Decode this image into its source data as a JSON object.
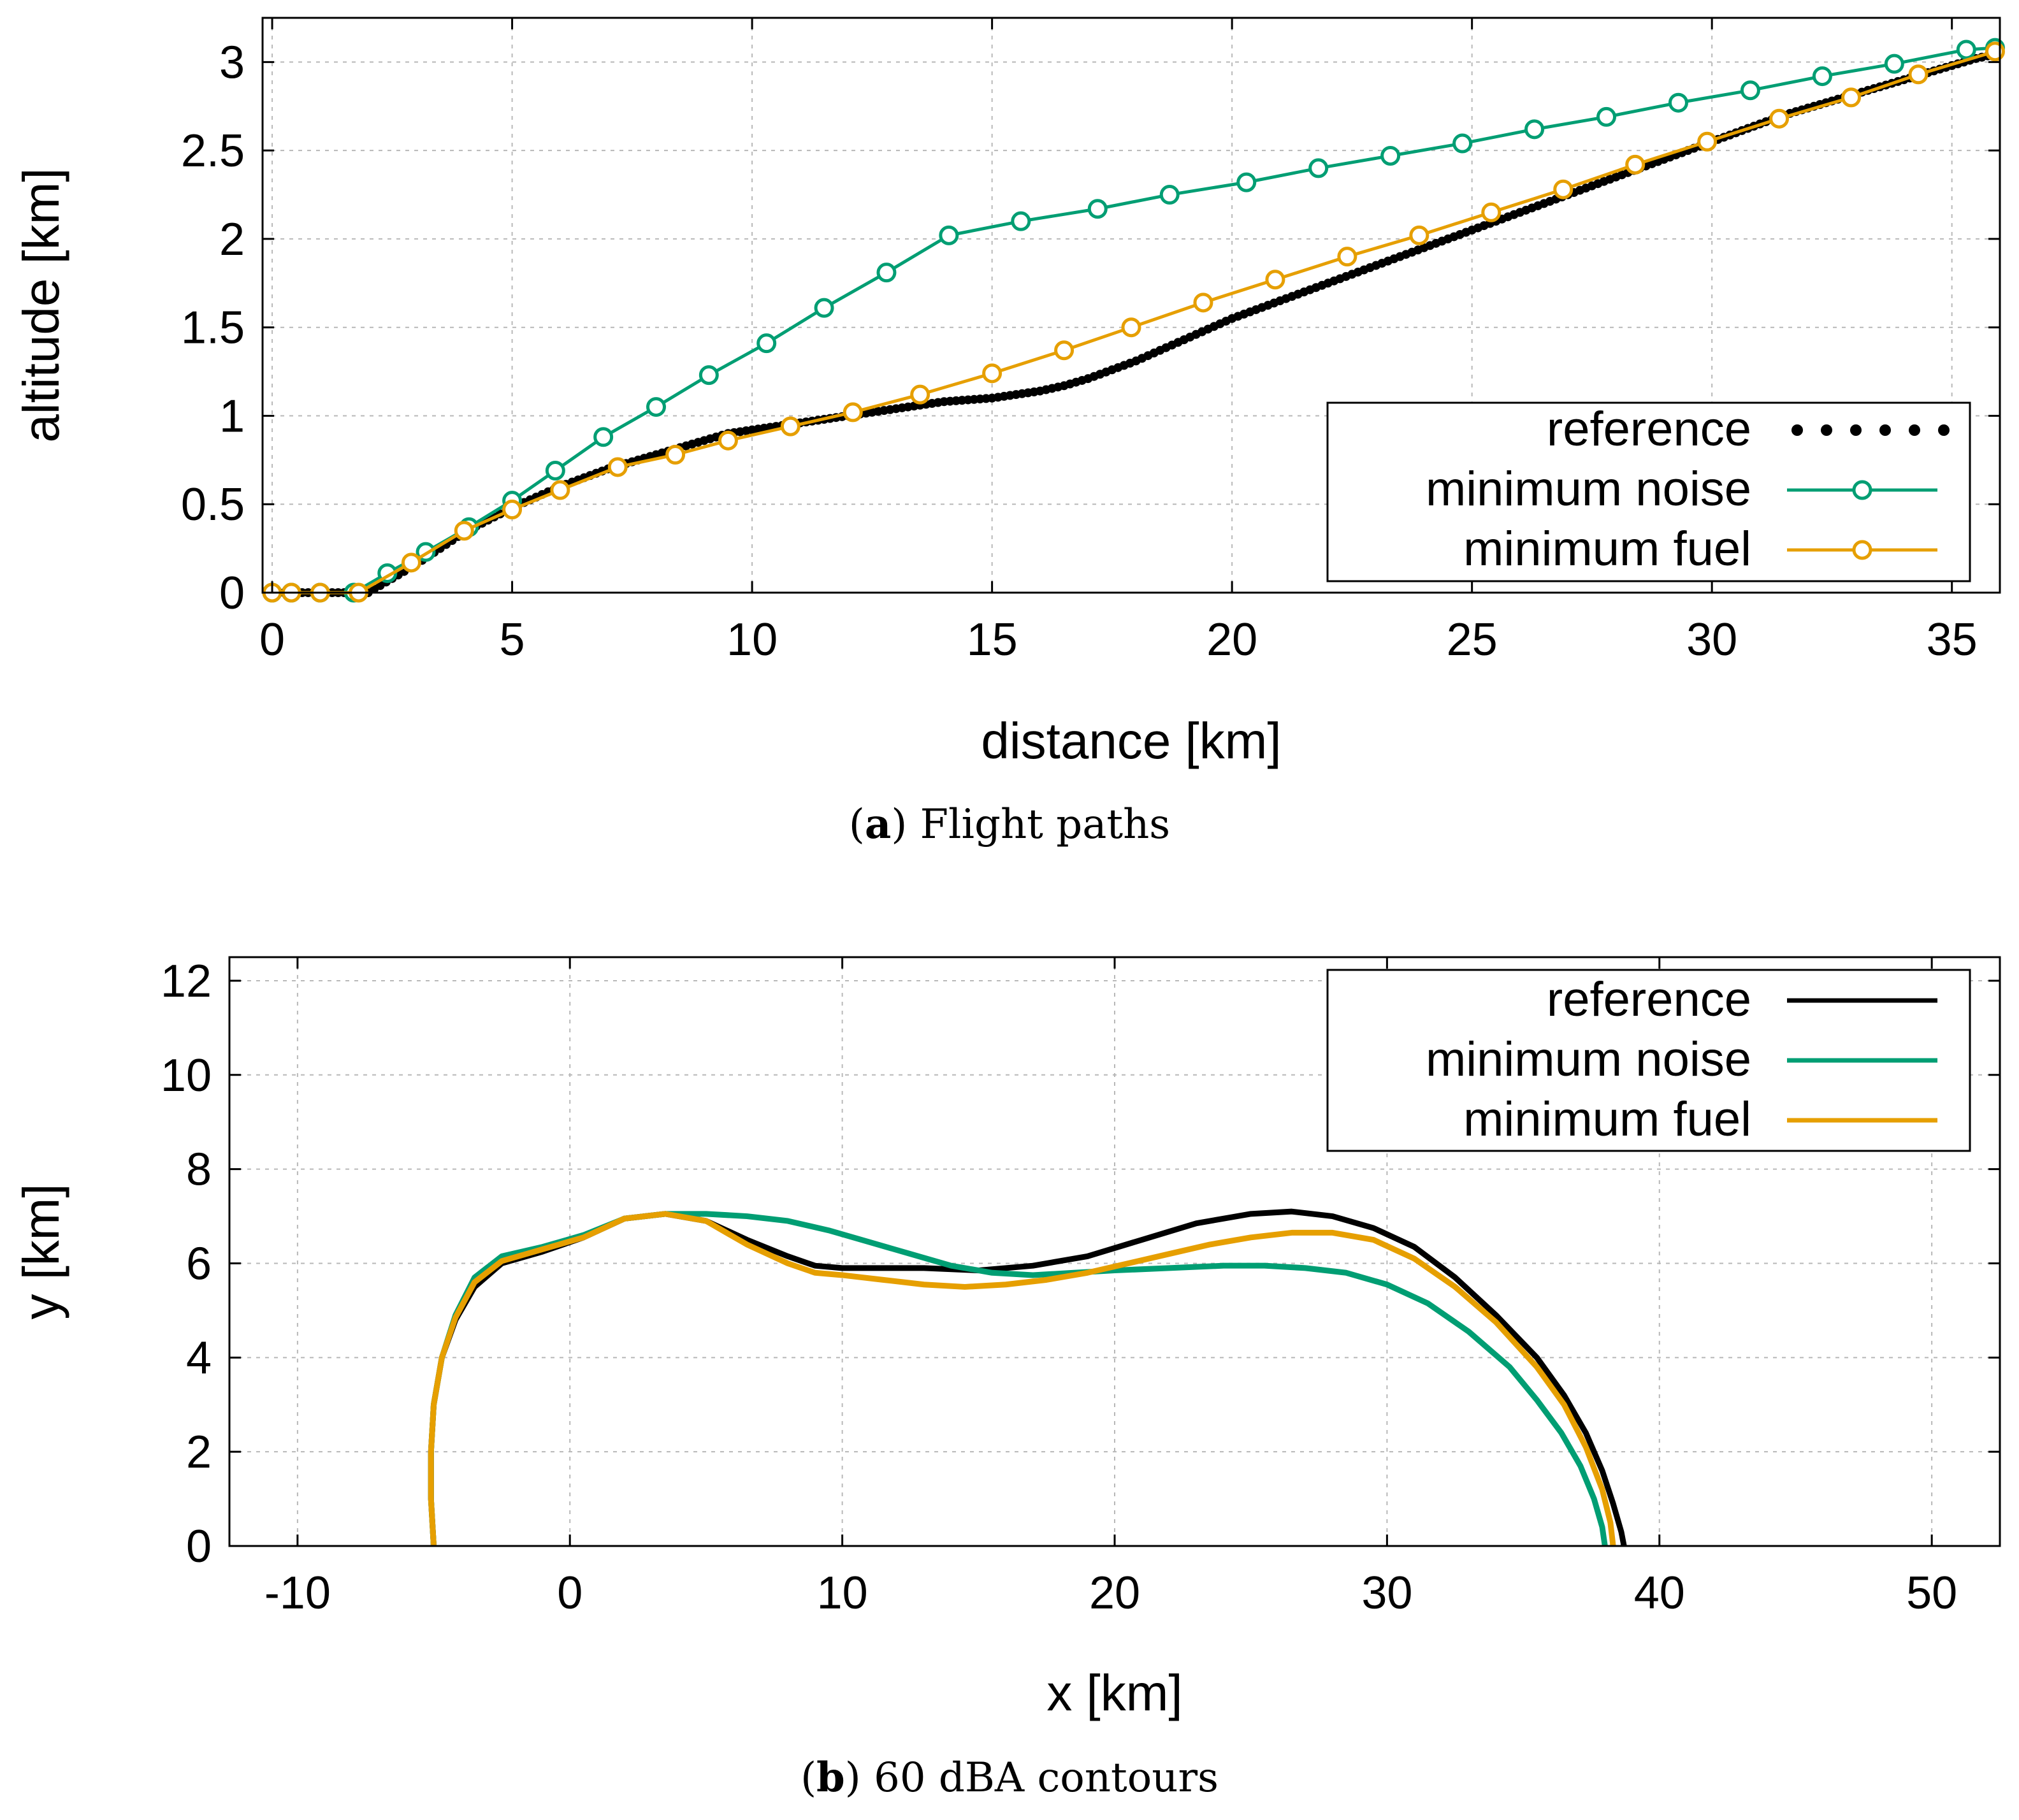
{
  "colors": {
    "reference": "#000000",
    "minimum_noise": "#009e73",
    "minimum_fuel": "#e69f00"
  },
  "chart_data": [
    {
      "type": "line",
      "caption_letter": "a",
      "caption_text": "Flight paths",
      "xlabel": "distance [km]",
      "ylabel": "altitude [km]",
      "xlim": [
        -0.2,
        36
      ],
      "ylim": [
        0,
        3.25
      ],
      "xticks": [
        0,
        5,
        10,
        15,
        20,
        25,
        30,
        35
      ],
      "yticks": [
        0,
        0.5,
        1,
        1.5,
        2,
        2.5,
        3
      ],
      "ytick_labels": [
        "0",
        "0.5",
        "1",
        "1.5",
        "2",
        "2.5",
        "3"
      ],
      "grid": true,
      "legend_position": "lower-right",
      "series": [
        {
          "name": "reference",
          "style": "dotted",
          "x": [
            0,
            0.5,
            1,
            1.5,
            2,
            2.5,
            3,
            3.5,
            4,
            4.5,
            5,
            5.5,
            6,
            6.5,
            7,
            7.5,
            8,
            8.5,
            9,
            9.5,
            10,
            10.5,
            11,
            11.5,
            12,
            12.5,
            13,
            13.5,
            14,
            14.5,
            15,
            15.5,
            16,
            16.5,
            17,
            17.5,
            18,
            18.5,
            19,
            19.5,
            20,
            20.5,
            21,
            21.5,
            22,
            22.5,
            23,
            23.5,
            24,
            24.5,
            25,
            25.5,
            26,
            26.5,
            27,
            27.5,
            28,
            28.5,
            29,
            29.5,
            30,
            30.5,
            31,
            31.5,
            32,
            32.5,
            33,
            33.5,
            34,
            34.5,
            35,
            35.5,
            36
          ],
          "y": [
            0,
            0,
            0,
            0,
            0,
            0.08,
            0.16,
            0.25,
            0.34,
            0.41,
            0.48,
            0.54,
            0.6,
            0.65,
            0.7,
            0.74,
            0.78,
            0.82,
            0.86,
            0.9,
            0.92,
            0.94,
            0.96,
            0.98,
            1.0,
            1.02,
            1.04,
            1.06,
            1.08,
            1.09,
            1.1,
            1.12,
            1.14,
            1.17,
            1.21,
            1.26,
            1.31,
            1.37,
            1.43,
            1.49,
            1.55,
            1.6,
            1.65,
            1.7,
            1.75,
            1.8,
            1.85,
            1.9,
            1.95,
            2.0,
            2.05,
            2.1,
            2.15,
            2.2,
            2.25,
            2.3,
            2.35,
            2.4,
            2.45,
            2.5,
            2.55,
            2.6,
            2.65,
            2.7,
            2.74,
            2.78,
            2.82,
            2.86,
            2.9,
            2.94,
            2.98,
            3.02,
            3.05
          ]
        },
        {
          "name": "minimum noise",
          "style": "line-circle",
          "x": [
            0,
            0.4,
            1,
            1.7,
            2.4,
            3.2,
            4.1,
            5,
            5.9,
            6.9,
            8,
            9.1,
            10.3,
            11.5,
            12.8,
            14.1,
            15.6,
            17.2,
            18.7,
            20.3,
            21.8,
            23.3,
            24.8,
            26.3,
            27.8,
            29.3,
            30.8,
            32.3,
            33.8,
            35.3,
            35.9
          ],
          "y": [
            0,
            0,
            0,
            0,
            0.11,
            0.23,
            0.37,
            0.52,
            0.69,
            0.88,
            1.05,
            1.23,
            1.41,
            1.61,
            1.81,
            2.02,
            2.1,
            2.17,
            2.25,
            2.32,
            2.4,
            2.47,
            2.54,
            2.62,
            2.69,
            2.77,
            2.84,
            2.92,
            2.99,
            3.07,
            3.08
          ]
        },
        {
          "name": "minimum fuel",
          "style": "line-circle",
          "x": [
            0,
            0.4,
            1,
            1.8,
            2.9,
            4.0,
            5.0,
            6.0,
            7.2,
            8.4,
            9.5,
            10.8,
            12.1,
            13.5,
            15.0,
            16.5,
            17.9,
            19.4,
            20.9,
            22.4,
            23.9,
            25.4,
            26.9,
            28.4,
            29.9,
            31.4,
            32.9,
            34.3,
            35.9
          ],
          "y": [
            0,
            0,
            0,
            0,
            0.17,
            0.35,
            0.47,
            0.58,
            0.71,
            0.78,
            0.86,
            0.94,
            1.02,
            1.12,
            1.24,
            1.37,
            1.5,
            1.64,
            1.77,
            1.9,
            2.02,
            2.15,
            2.28,
            2.42,
            2.55,
            2.68,
            2.8,
            2.93,
            3.06
          ]
        }
      ]
    },
    {
      "type": "line",
      "caption_letter": "b",
      "caption_text": "60 dBA contours",
      "xlabel": "x [km]",
      "ylabel": "y [km]",
      "xlim": [
        -12.5,
        52.5
      ],
      "ylim": [
        0,
        12.5
      ],
      "xticks": [
        -10,
        0,
        10,
        20,
        30,
        40,
        50
      ],
      "yticks": [
        0,
        2,
        4,
        6,
        8,
        10,
        12
      ],
      "grid": true,
      "legend_position": "top-right",
      "series": [
        {
          "name": "reference",
          "style": "line",
          "x": [
            -5,
            -5.1,
            -5.1,
            -5,
            -4.7,
            -4.2,
            -3.5,
            -2.5,
            -1,
            0.5,
            2,
            3.5,
            5,
            6.5,
            8,
            9,
            10,
            11.5,
            13,
            15,
            17,
            19,
            21,
            23,
            25,
            26.5,
            28,
            29.5,
            31,
            32.5,
            34,
            35.5,
            36.5,
            37.3,
            37.9,
            38.3,
            38.6,
            38.7
          ],
          "y": [
            0,
            1,
            2,
            3,
            4,
            4.8,
            5.5,
            6.0,
            6.25,
            6.55,
            6.95,
            7.05,
            6.9,
            6.5,
            6.15,
            5.95,
            5.9,
            5.9,
            5.9,
            5.85,
            5.95,
            6.15,
            6.5,
            6.85,
            7.05,
            7.1,
            7.0,
            6.75,
            6.35,
            5.7,
            4.9,
            4.0,
            3.2,
            2.4,
            1.6,
            0.9,
            0.3,
            0
          ]
        },
        {
          "name": "minimum noise",
          "style": "line",
          "x": [
            -5,
            -5.1,
            -5.1,
            -5,
            -4.7,
            -4.2,
            -3.5,
            -2.5,
            -1,
            0.5,
            2,
            3.5,
            5,
            6.5,
            8,
            9.5,
            11,
            12.5,
            14,
            15.5,
            17,
            18.5,
            20,
            22,
            24,
            25.5,
            27,
            28.5,
            30,
            31.5,
            33,
            34.5,
            35.5,
            36.4,
            37.1,
            37.6,
            37.9,
            38.0
          ],
          "y": [
            0,
            1,
            2,
            3,
            4,
            4.9,
            5.7,
            6.15,
            6.35,
            6.6,
            6.95,
            7.05,
            7.05,
            7.0,
            6.9,
            6.7,
            6.45,
            6.2,
            5.95,
            5.8,
            5.75,
            5.8,
            5.85,
            5.9,
            5.95,
            5.95,
            5.9,
            5.8,
            5.55,
            5.15,
            4.55,
            3.8,
            3.1,
            2.4,
            1.7,
            1.0,
            0.4,
            0
          ]
        },
        {
          "name": "minimum fuel",
          "style": "line",
          "x": [
            -5,
            -5.1,
            -5.1,
            -5,
            -4.7,
            -4.2,
            -3.5,
            -2.5,
            -1,
            0.5,
            2,
            3.5,
            5,
            6.5,
            8,
            9,
            10,
            11.5,
            13,
            14.5,
            16,
            17.5,
            19,
            20.5,
            22,
            23.5,
            25,
            26.5,
            28,
            29.5,
            31,
            32.5,
            34,
            35.5,
            36.5,
            37.3,
            37.9,
            38.2,
            38.3
          ],
          "y": [
            0,
            1,
            2,
            3,
            4,
            4.85,
            5.6,
            6.05,
            6.3,
            6.55,
            6.95,
            7.05,
            6.9,
            6.4,
            6.0,
            5.8,
            5.75,
            5.65,
            5.55,
            5.5,
            5.55,
            5.65,
            5.8,
            6.0,
            6.2,
            6.4,
            6.55,
            6.65,
            6.65,
            6.5,
            6.1,
            5.5,
            4.75,
            3.8,
            3.0,
            2.1,
            1.2,
            0.5,
            0
          ]
        }
      ]
    }
  ]
}
